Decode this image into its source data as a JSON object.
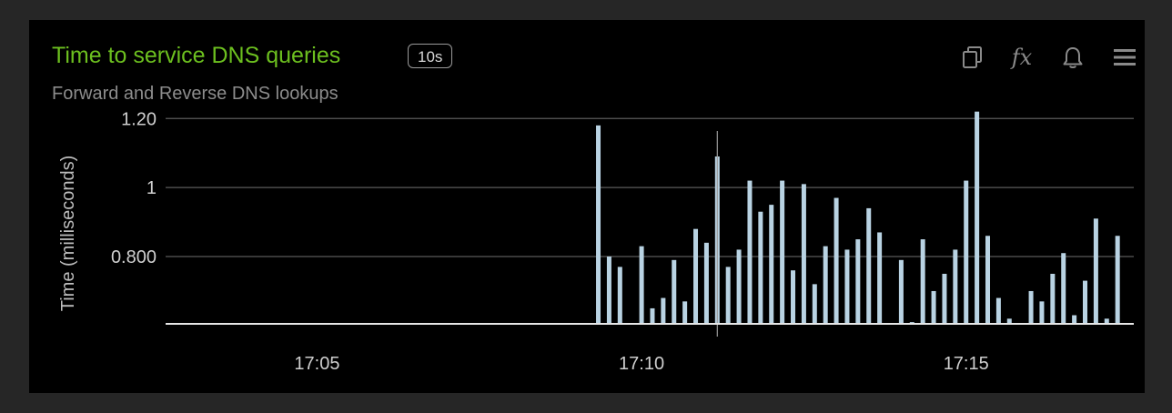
{
  "panel": {
    "title": "Time to service DNS queries",
    "interval_badge": "10s",
    "subtitle": "Forward and Reverse DNS lookups",
    "toolbar": [
      {
        "name": "copy-icon"
      },
      {
        "name": "function-icon",
        "glyph": "fx"
      },
      {
        "name": "bell-icon"
      },
      {
        "name": "menu-icon"
      }
    ]
  },
  "colors": {
    "background": "#000000",
    "frame": "#262626",
    "title": "#6cbf1f",
    "bar": "#b9d3e3",
    "grid": "#5a5a5a",
    "axis": "#e6e6e6"
  },
  "chart_data": {
    "type": "bar",
    "title": "Time to service DNS queries",
    "subtitle": "Forward and Reverse DNS lookups",
    "xlabel": "",
    "ylabel": "Time (milliseconds)",
    "y_ticks": [
      {
        "value": 0.8,
        "label": "0.800"
      },
      {
        "value": 1.0,
        "label": "1"
      },
      {
        "value": 1.2,
        "label": "1.20"
      }
    ],
    "x_ticks": [
      {
        "value": "17:05",
        "label": "17:05"
      },
      {
        "value": "17:10",
        "label": "17:10"
      },
      {
        "value": "17:15",
        "label": "17:15"
      }
    ],
    "ylim": [
      0.605,
      1.235
    ],
    "xlim": [
      "17:02:40",
      "17:17:35"
    ],
    "grid": true,
    "series": [
      {
        "color": "#b9d3e3",
        "points": [
          [
            "17:09:20",
            1.18
          ],
          [
            "17:09:30",
            0.8
          ],
          [
            "17:09:40",
            0.77
          ],
          [
            "17:10:00",
            0.83
          ],
          [
            "17:10:10",
            0.65
          ],
          [
            "17:10:20",
            0.68
          ],
          [
            "17:10:30",
            0.79
          ],
          [
            "17:10:40",
            0.67
          ],
          [
            "17:10:50",
            0.88
          ],
          [
            "17:11:00",
            0.84
          ],
          [
            "17:11:10",
            1.09
          ],
          [
            "17:11:20",
            0.77
          ],
          [
            "17:11:30",
            0.82
          ],
          [
            "17:11:40",
            1.02
          ],
          [
            "17:11:50",
            0.93
          ],
          [
            "17:12:00",
            0.95
          ],
          [
            "17:12:10",
            1.02
          ],
          [
            "17:12:20",
            0.76
          ],
          [
            "17:12:30",
            1.01
          ],
          [
            "17:12:40",
            0.72
          ],
          [
            "17:12:50",
            0.83
          ],
          [
            "17:13:00",
            0.97
          ],
          [
            "17:13:10",
            0.82
          ],
          [
            "17:13:20",
            0.85
          ],
          [
            "17:13:30",
            0.94
          ],
          [
            "17:13:40",
            0.87
          ],
          [
            "17:14:00",
            0.79
          ],
          [
            "17:14:10",
            0.61
          ],
          [
            "17:14:20",
            0.85
          ],
          [
            "17:14:30",
            0.7
          ],
          [
            "17:14:40",
            0.75
          ],
          [
            "17:14:50",
            0.82
          ],
          [
            "17:15:00",
            1.02
          ],
          [
            "17:15:10",
            1.22
          ],
          [
            "17:15:20",
            0.86
          ],
          [
            "17:15:30",
            0.68
          ],
          [
            "17:15:40",
            0.62
          ],
          [
            "17:16:00",
            0.7
          ],
          [
            "17:16:10",
            0.67
          ],
          [
            "17:16:20",
            0.75
          ],
          [
            "17:16:30",
            0.81
          ],
          [
            "17:16:40",
            0.63
          ],
          [
            "17:16:50",
            0.73
          ],
          [
            "17:17:00",
            0.91
          ],
          [
            "17:17:10",
            0.62
          ],
          [
            "17:17:20",
            0.86
          ]
        ]
      }
    ],
    "crosshair_x": "17:11:10"
  }
}
